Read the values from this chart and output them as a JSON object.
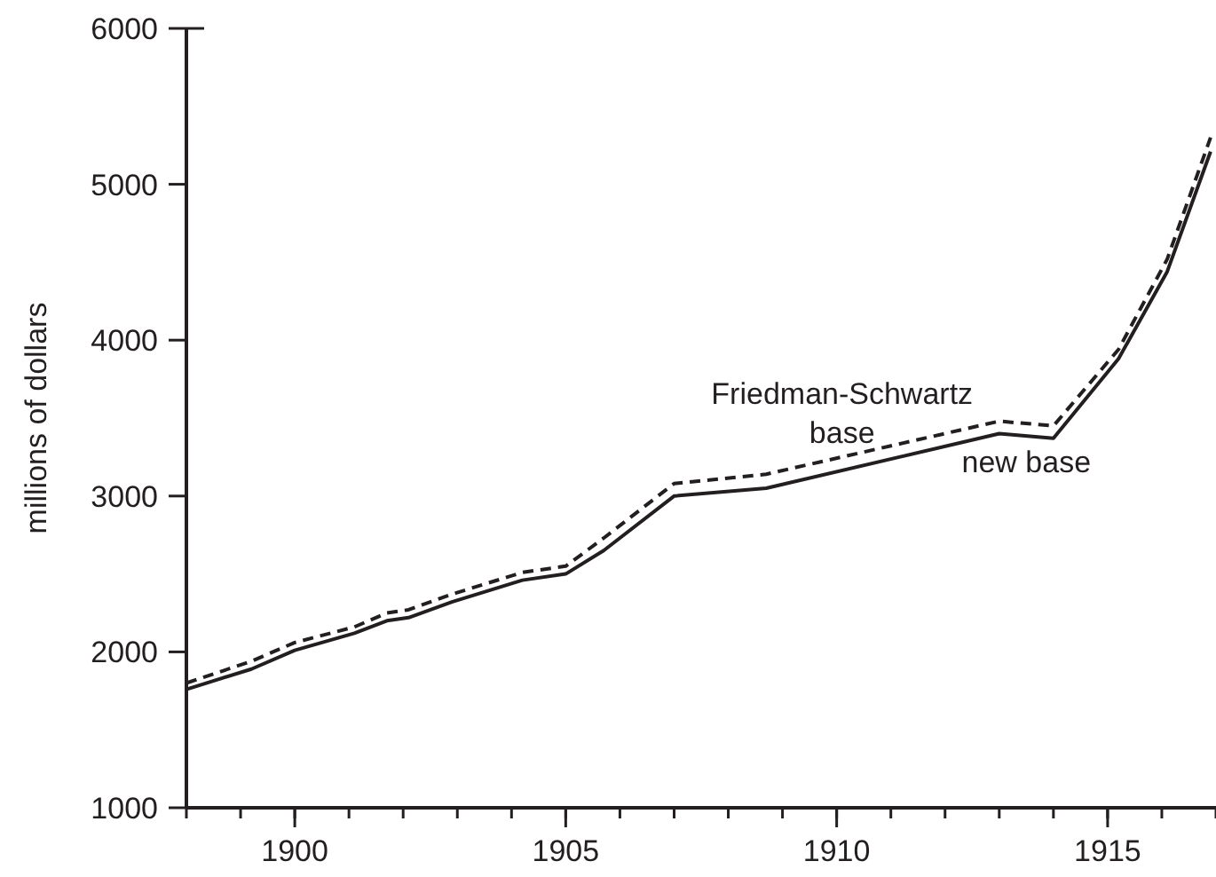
{
  "chart_data": {
    "type": "line",
    "ylabel": "millions of dollars",
    "xlim": [
      1898,
      1917
    ],
    "xticks": [
      1900,
      1905,
      1910,
      1915
    ],
    "ylim": [
      1000,
      6000
    ],
    "yticks": [
      1000,
      2000,
      3000,
      4000,
      5000,
      6000
    ],
    "grid": false,
    "marker": "none",
    "series": [
      {
        "name": "Friedman-Schwartz base",
        "color": "#231f20",
        "line_style": "dashed",
        "x": [
          1898,
          1899.2,
          1900,
          1901.1,
          1901.7,
          1902.1,
          1902.9,
          1904.2,
          1905,
          1905.7,
          1907,
          1908.7,
          1913,
          1914,
          1915.2,
          1916.1,
          1916.9
        ],
        "values": [
          1800,
          1940,
          2060,
          2160,
          2250,
          2270,
          2370,
          2510,
          2550,
          2730,
          3080,
          3140,
          3480,
          3450,
          3940,
          4520,
          5300
        ]
      },
      {
        "name": "new base",
        "color": "#231f20",
        "line_style": "solid",
        "x": [
          1898,
          1899.2,
          1900,
          1901.1,
          1901.7,
          1902.1,
          1902.9,
          1904.2,
          1905,
          1905.7,
          1907,
          1908.7,
          1913,
          1914,
          1915.2,
          1916.1,
          1916.9
        ],
        "values": [
          1760,
          1890,
          2010,
          2120,
          2200,
          2220,
          2320,
          2460,
          2500,
          2650,
          3000,
          3050,
          3400,
          3370,
          3880,
          4440,
          5210
        ]
      }
    ]
  }
}
